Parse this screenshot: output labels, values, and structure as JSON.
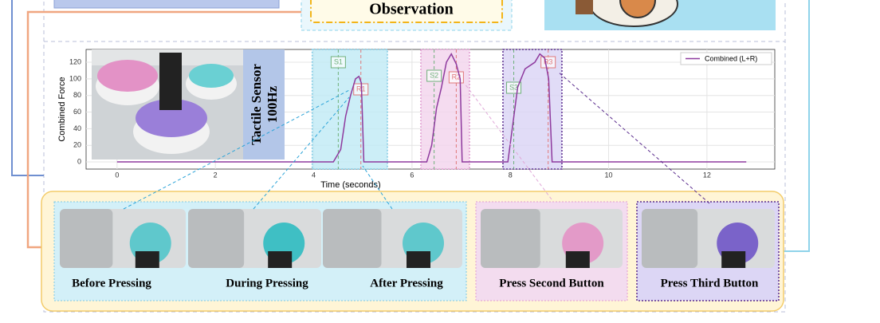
{
  "observation": "Observation",
  "sensor_label": {
    "line1": "Tactile Sensor",
    "line2": "100Hz"
  },
  "chart_data": {
    "type": "line",
    "xlabel": "Time (seconds)",
    "ylabel": "Combined Force",
    "xlim": [
      -0.63,
      13.38
    ],
    "ylim": [
      -8.6,
      135.4
    ],
    "xticks": [
      0,
      2,
      4,
      6,
      8,
      10,
      12
    ],
    "yticks": [
      0,
      20,
      40,
      60,
      80,
      100,
      120
    ],
    "grid": true,
    "legend": "upper right",
    "series": [
      {
        "name": "Combined (L+R)",
        "color": "#8e3a9e",
        "x": [
          0,
          4.4,
          4.55,
          4.65,
          4.75,
          4.85,
          4.92,
          4.97,
          5.02,
          6.3,
          6.4,
          6.5,
          6.6,
          6.7,
          6.8,
          6.9,
          6.98,
          7.02,
          7.95,
          8.05,
          8.15,
          8.3,
          8.5,
          8.6,
          8.7,
          8.78,
          8.85,
          12.8
        ],
        "values": [
          0,
          0,
          15,
          55,
          80,
          100,
          103,
          95,
          0,
          0,
          20,
          65,
          90,
          120,
          130,
          118,
          100,
          0,
          0,
          45,
          90,
          112,
          120,
          130,
          125,
          100,
          0,
          0
        ]
      }
    ],
    "regions": [
      {
        "x": [
          3.97,
          5.5
        ],
        "color": "#bfeaf5",
        "border": "#7fc9e3"
      },
      {
        "x": [
          6.18,
          7.17
        ],
        "color": "#f3d3ec",
        "border": "#e09bd0"
      },
      {
        "x": [
          7.85,
          9.05
        ],
        "color": "#d9d3f5",
        "border": "#5b2d8e"
      }
    ],
    "annotations": [
      {
        "label": "S1",
        "x": 4.5,
        "color": "#6fb07a"
      },
      {
        "label": "R1",
        "x": 4.96,
        "color": "#e0787a"
      },
      {
        "label": "S2",
        "x": 6.45,
        "color": "#6fb07a"
      },
      {
        "label": "R2",
        "x": 6.9,
        "color": "#e0787a"
      },
      {
        "label": "S3",
        "x": 8.07,
        "color": "#6fb07a"
      },
      {
        "label": "R3",
        "x": 8.77,
        "color": "#e0787a"
      }
    ]
  },
  "panels": [
    {
      "label": "Before Pressing"
    },
    {
      "label": "During Pressing"
    },
    {
      "label": "After Pressing"
    },
    {
      "label": "Press Second Button"
    },
    {
      "label": "Press Third Button"
    }
  ]
}
